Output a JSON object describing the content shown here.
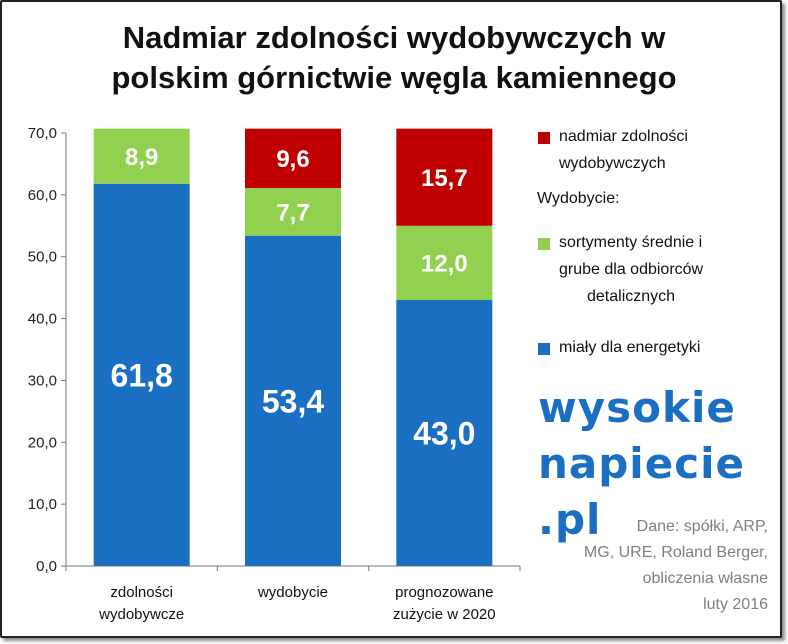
{
  "chart_data": {
    "type": "bar",
    "stacked": true,
    "title_lines": [
      "Nadmiar zdolności  wydobywczych w",
      "polskim górnictwie węgla kamiennego"
    ],
    "categories": [
      [
        "zdolności",
        "wydobywcze"
      ],
      [
        "wydobycie"
      ],
      [
        "prognozowane",
        "zużycie w 2020"
      ]
    ],
    "series": [
      {
        "name": "miały dla energetyki",
        "color": "#1a6fc2",
        "values": [
          61.8,
          53.4,
          43.0
        ],
        "labels": [
          "61,8",
          "53,4",
          "43,0"
        ]
      },
      {
        "name": "sortymenty średnie i grube dla odbiorców detalicznych",
        "color": "#92d050",
        "values": [
          8.9,
          7.7,
          12.0
        ],
        "labels": [
          "8,9",
          "7,7",
          "12,0"
        ]
      },
      {
        "name": "nadmiar zdolności wydobywczych",
        "color": "#c00000",
        "values": [
          0,
          9.6,
          15.7
        ],
        "labels": [
          "",
          "9,6",
          "15,7"
        ]
      }
    ],
    "ylim": [
      0,
      70
    ],
    "yticks": [
      0,
      10,
      20,
      30,
      40,
      50,
      60,
      70
    ],
    "ytick_labels": [
      "0,0",
      "10,0",
      "20,0",
      "30,0",
      "40,0",
      "50,0",
      "60,0",
      "70,0"
    ],
    "grid": false,
    "legend_position": "right"
  },
  "legend": {
    "surplus": [
      "nadmiar zdolności",
      "wydobywczych"
    ],
    "header": "Wydobycie:",
    "assortments": [
      "sortymenty średnie i",
      "grube dla odbiorców",
      "detalicznych"
    ],
    "fines": "miały dla energetyki"
  },
  "logo": {
    "line1": "wysokie",
    "line2": "napiecie",
    "line3": ".pl"
  },
  "source": {
    "lines": [
      "Dane: spółki, ARP,",
      "MG, URE, Roland Berger,",
      "obliczenia własne",
      "luty 2016"
    ]
  },
  "colors": {
    "fines": "#1a6fc2",
    "assortments": "#92d050",
    "surplus": "#c00000"
  }
}
